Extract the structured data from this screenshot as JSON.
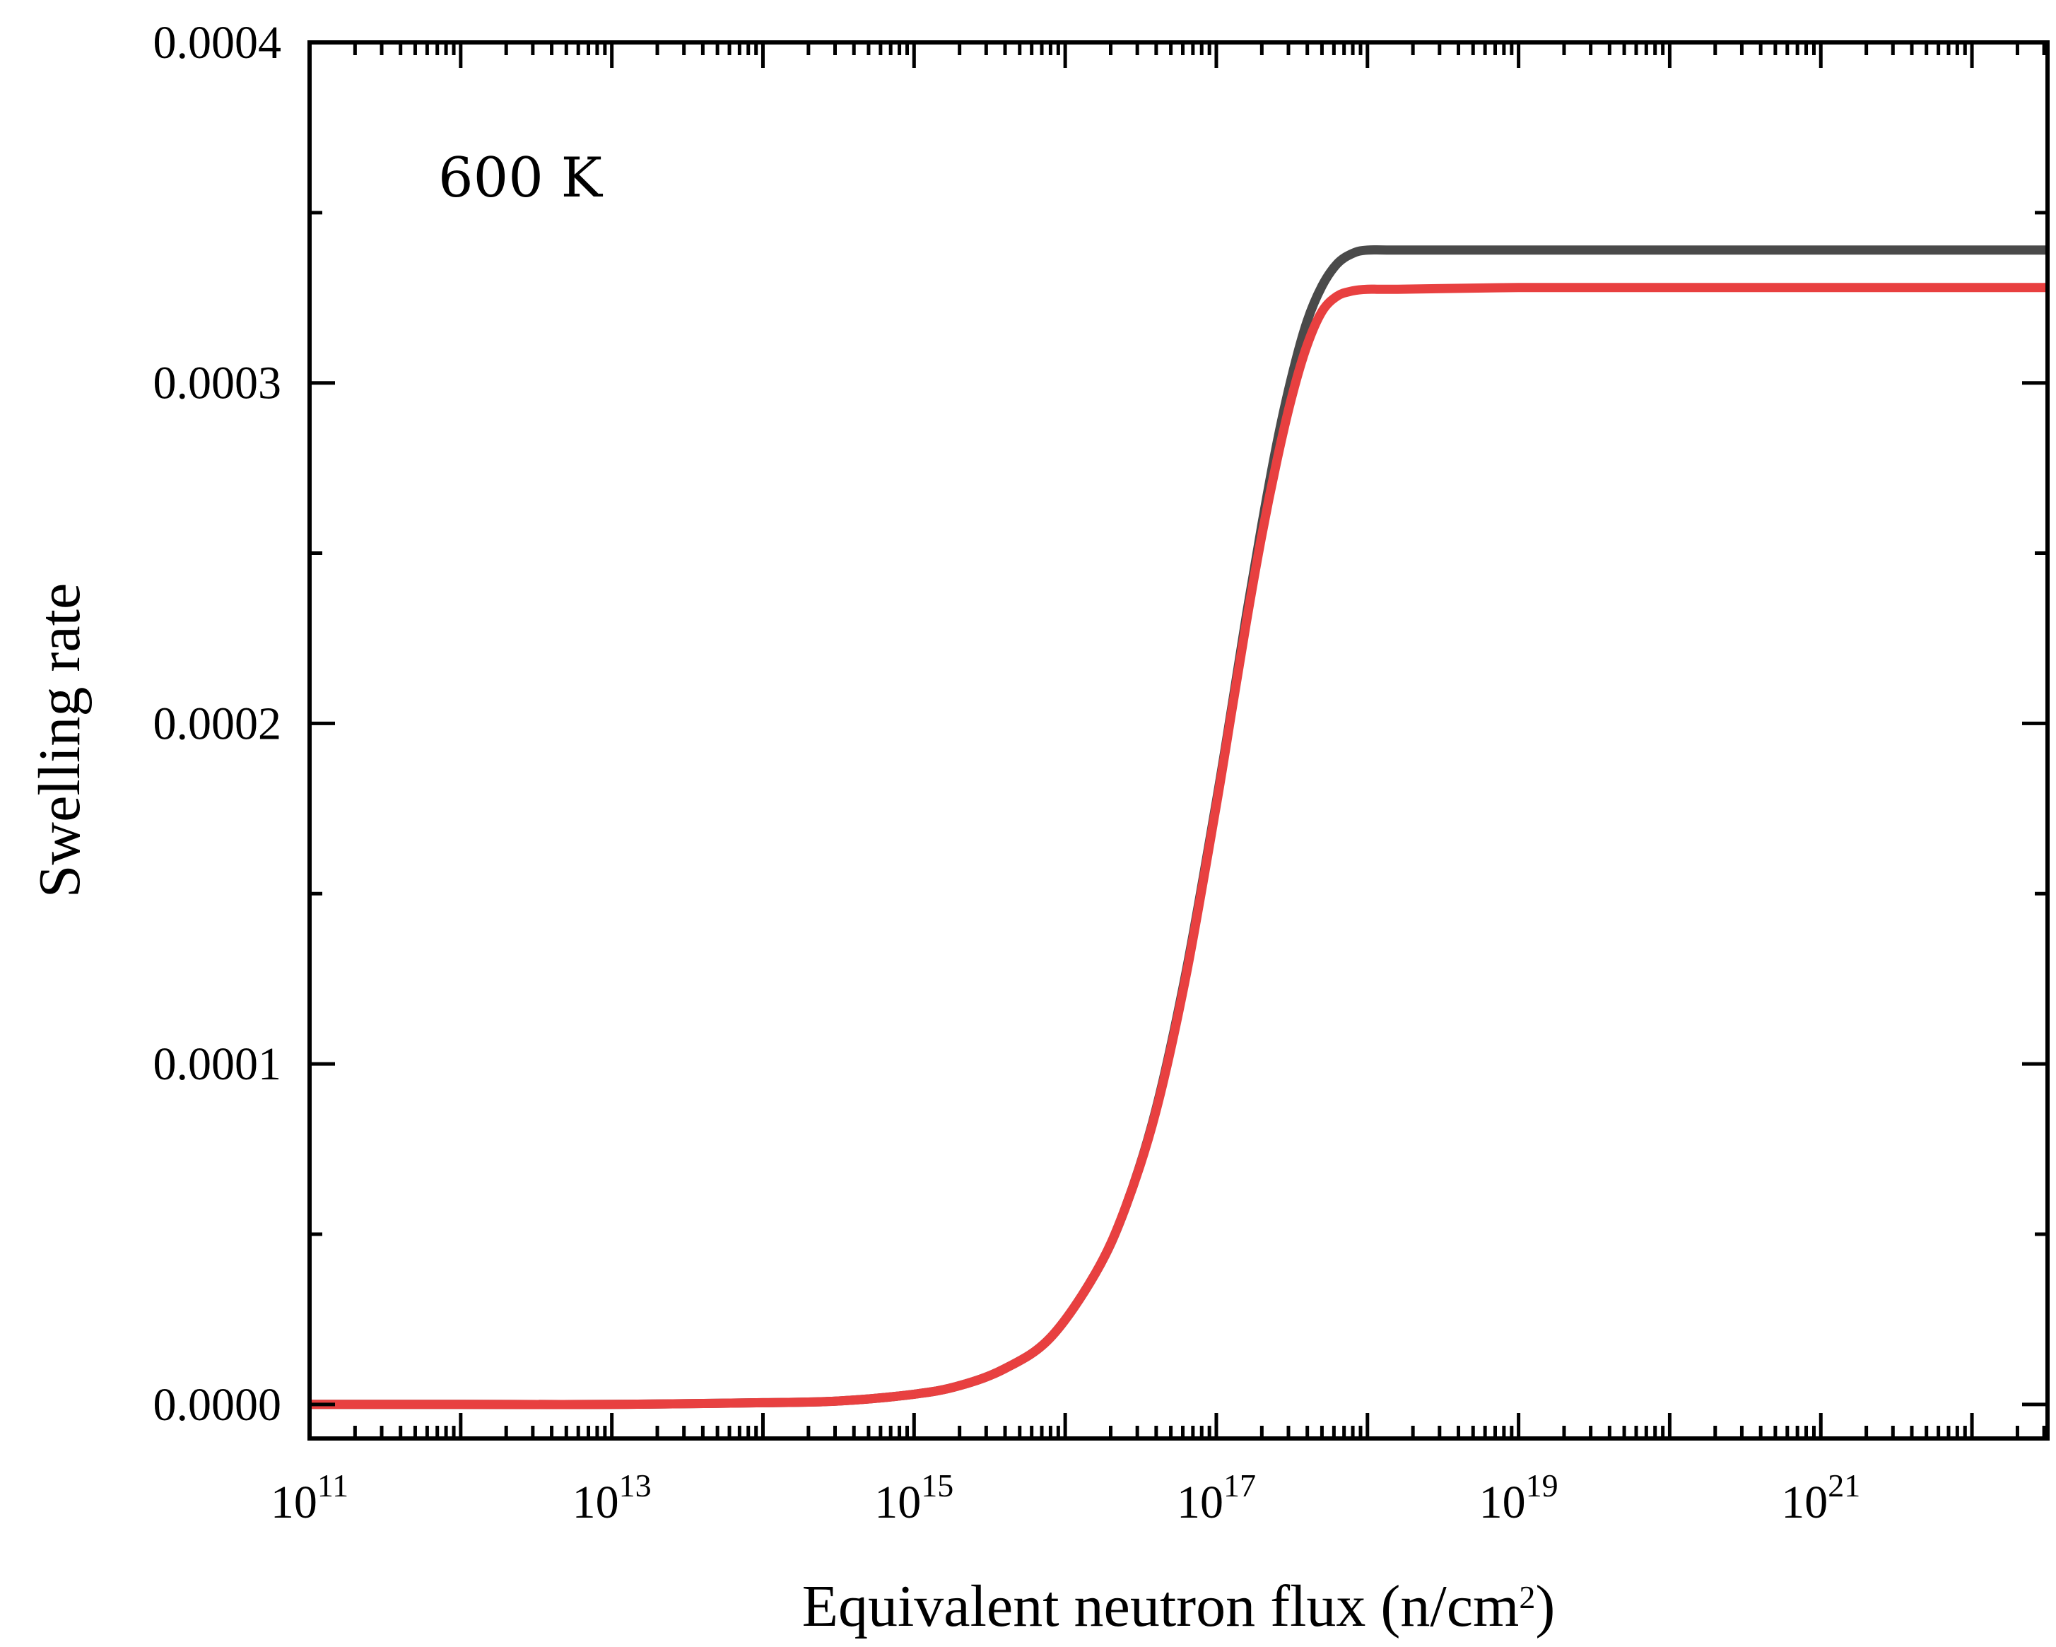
{
  "chart_data": {
    "type": "line",
    "title": "",
    "xlabel": "Equivalent neutron flux (n/cm",
    "xlabel_sup": "2",
    "xlabel_end": ")",
    "ylabel": "Swelling rate",
    "annotation": "600  K",
    "xscale": "log",
    "xlim_exp": [
      11,
      22.5
    ],
    "ylim": [
      -1e-05,
      0.0004
    ],
    "x_ticks": [
      {
        "base": "10",
        "exp": "11",
        "value": 11
      },
      {
        "base": "10",
        "exp": "13",
        "value": 13
      },
      {
        "base": "10",
        "exp": "15",
        "value": 15
      },
      {
        "base": "10",
        "exp": "17",
        "value": 17
      },
      {
        "base": "10",
        "exp": "19",
        "value": 19
      },
      {
        "base": "10",
        "exp": "21",
        "value": 21
      }
    ],
    "y_ticks": [
      {
        "label": "0.0000",
        "value": 0
      },
      {
        "label": "0.0001",
        "value": 0.0001
      },
      {
        "label": "0.0002",
        "value": 0.0002
      },
      {
        "label": "0.0003",
        "value": 0.0003
      },
      {
        "label": "0.0004",
        "value": 0.0004
      }
    ],
    "series": [
      {
        "name": "gray",
        "color": "#4a4a4a",
        "x_log10": [
          11,
          12,
          13,
          14,
          14.5,
          15,
          15.3,
          15.6,
          15.9,
          16.2,
          16.4,
          16.6,
          16.8,
          17.0,
          17.1,
          17.2,
          17.3,
          17.4,
          17.5,
          17.6,
          17.7,
          17.8,
          17.9,
          18.0,
          18.2,
          19,
          20,
          21,
          22.5
        ],
        "y": [
          0.0,
          0.0,
          0.0,
          5e-07,
          1e-06,
          3e-06,
          5.5e-06,
          1.05e-05,
          1.95e-05,
          3.85e-05,
          5.8e-05,
          8.65e-05,
          0.000127,
          0.000177,
          0.000204,
          0.000232,
          0.000258,
          0.000282,
          0.000302,
          0.000318,
          0.0003285,
          0.000335,
          0.000338,
          0.000339,
          0.000339,
          0.000339,
          0.000339,
          0.000339,
          0.000339
        ]
      },
      {
        "name": "red",
        "color": "#e84040",
        "x_log10": [
          11,
          12,
          13,
          14,
          14.5,
          15,
          15.3,
          15.6,
          15.9,
          16.2,
          16.4,
          16.6,
          16.8,
          17.0,
          17.1,
          17.2,
          17.3,
          17.4,
          17.5,
          17.6,
          17.7,
          17.8,
          17.9,
          18.0,
          18.2,
          19,
          20,
          21,
          22.5
        ],
        "y": [
          0.0,
          0.0,
          0.0,
          5e-07,
          1e-06,
          3e-06,
          5.5e-06,
          1.05e-05,
          1.95e-05,
          3.85e-05,
          5.8e-05,
          8.6e-05,
          0.000126,
          0.000176,
          0.000203,
          0.00023,
          0.000255,
          0.000277,
          0.000296,
          0.000311,
          0.000321,
          0.0003255,
          0.000327,
          0.0003275,
          0.0003275,
          0.000328,
          0.000328,
          0.000328,
          0.000328
        ]
      }
    ]
  }
}
